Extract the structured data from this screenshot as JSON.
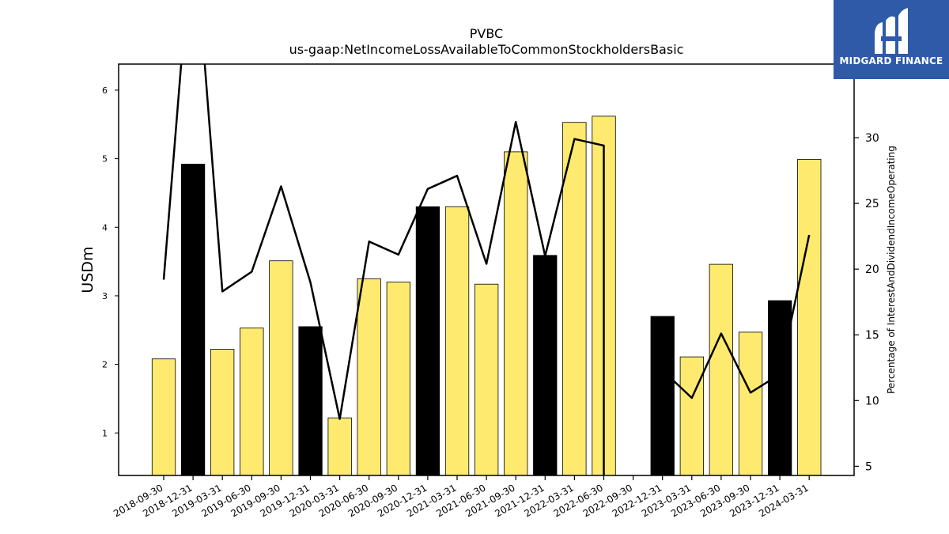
{
  "chart_data": {
    "type": "bar",
    "title": "PVBC",
    "subtitle": "us-gaap:NetIncomeLossAvailableToCommonStockholdersBasic",
    "ylabel": "USDm",
    "y2label": "Percentage of InterestAndDividendIncomeOperating",
    "ylim": [
      0.38,
      6.38
    ],
    "y2lim": [
      4.3,
      35.6
    ],
    "yticks": [
      1,
      2,
      3,
      4,
      5,
      6
    ],
    "y2ticks": [
      5,
      10,
      15,
      20,
      25,
      30
    ],
    "grid": false,
    "categories": [
      "2018-09-30",
      "2018-12-31",
      "2019-03-31",
      "2019-06-30",
      "2019-09-30",
      "2019-12-31",
      "2020-03-31",
      "2020-06-30",
      "2020-09-30",
      "2020-12-31",
      "2021-03-31",
      "2021-06-30",
      "2021-09-30",
      "2021-12-31",
      "2022-03-31",
      "2022-06-30",
      "2022-09-30",
      "2022-12-31",
      "2023-03-31",
      "2023-06-30",
      "2023-09-30",
      "2023-12-31",
      "2024-03-31"
    ],
    "values": [
      2.08,
      4.92,
      2.22,
      2.53,
      3.51,
      2.55,
      1.22,
      3.25,
      3.2,
      4.3,
      4.3,
      3.17,
      5.1,
      3.59,
      5.53,
      5.62,
      null,
      2.7,
      2.11,
      3.46,
      2.47,
      2.93,
      4.99
    ],
    "bar_colors": [
      "#fdea6e",
      "#000000",
      "#fdea6e",
      "#fdea6e",
      "#fdea6e",
      "#000000",
      "#fdea6e",
      "#fdea6e",
      "#fdea6e",
      "#000000",
      "#fdea6e",
      "#fdea6e",
      "#fdea6e",
      "#000000",
      "#fdea6e",
      "#fdea6e",
      "#fdea6e",
      "#000000",
      "#fdea6e",
      "#fdea6e",
      "#fdea6e",
      "#000000",
      "#fdea6e"
    ],
    "line_series": {
      "values": [
        19.2,
        39,
        39,
        18.3,
        19.8,
        26.3,
        19,
        8.6,
        22.1,
        21.1,
        26.1,
        27.1,
        20.4,
        31.2,
        21,
        29.9,
        29.4,
        null,
        null,
        12.3,
        10.2,
        15.1,
        10.6,
        12,
        22.6
      ],
      "x_index": [
        0,
        0.72,
        1.28,
        2,
        3,
        4,
        5,
        6,
        7,
        8,
        9,
        10,
        11,
        12,
        13,
        14,
        15,
        16,
        17,
        17,
        18,
        19,
        20,
        21,
        22
      ],
      "color": "#000000"
    }
  },
  "logo": {
    "text": "MIDGARD FINANCE",
    "bg": "#2e5aa8"
  }
}
